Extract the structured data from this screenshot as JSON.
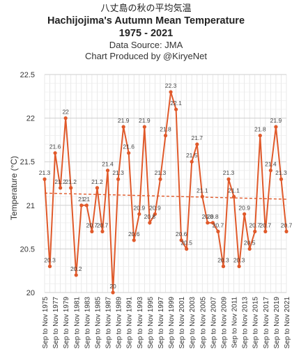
{
  "titles": {
    "japanese": "八丈島の秋の平均気温",
    "title": "Hachijojima's Autumn Mean Temperature",
    "years": "1975 - 2021",
    "source": "Data Source: JMA",
    "credit": "Chart Produced by @KiryeNet"
  },
  "chart_data": {
    "type": "line",
    "title": "Hachijojima's Autumn Mean Temperature",
    "ylabel": "Temperature (°C)",
    "xlabel": "",
    "ylim": [
      20,
      22.5
    ],
    "yticks": [
      "20",
      "20.5",
      "21",
      "21.5",
      "22",
      "22.5"
    ],
    "grid": true,
    "line_color": "#e0592a",
    "trend_color": "#e0592a",
    "categories": [
      "Sep to Nov 1975",
      "Sep to Nov 1976",
      "Sep to Nov 1977",
      "Sep to Nov 1978",
      "Sep to Nov 1979",
      "Sep to Nov 1980",
      "Sep to Nov 1981",
      "Sep to Nov 1982",
      "Sep to Nov 1983",
      "Sep to Nov 1984",
      "Sep to Nov 1985",
      "Sep to Nov 1986",
      "Sep to Nov 1987",
      "Sep to Nov 1988",
      "Sep to Nov 1989",
      "Sep to Nov 1990",
      "Sep to Nov 1991",
      "Sep to Nov 1992",
      "Sep to Nov 1993",
      "Sep to Nov 1994",
      "Sep to Nov 1995",
      "Sep to Nov 1996",
      "Sep to Nov 1997",
      "Sep to Nov 1998",
      "Sep to Nov 1999",
      "Sep to Nov 2000",
      "Sep to Nov 2001",
      "Sep to Nov 2002",
      "Sep to Nov 2003",
      "Sep to Nov 2004",
      "Sep to Nov 2005",
      "Sep to Nov 2006",
      "Sep to Nov 2007",
      "Sep to Nov 2008",
      "Sep to Nov 2009",
      "Sep to Nov 2010",
      "Sep to Nov 2011",
      "Sep to Nov 2012",
      "Sep to Nov 2013",
      "Sep to Nov 2014",
      "Sep to Nov 2015",
      "Sep to Nov 2016",
      "Sep to Nov 2017",
      "Sep to Nov 2018",
      "Sep to Nov 2019",
      "Sep to Nov 2020",
      "Sep to Nov 2021"
    ],
    "tick_labels": [
      "Sep to Nov 1975",
      "Sep to Nov 1977",
      "Sep to Nov 1979",
      "Sep to Nov 1981",
      "Sep to Nov 1983",
      "Sep to Nov 1985",
      "Sep to Nov 1987",
      "Sep to Nov 1989",
      "Sep to Nov 1991",
      "Sep to Nov 1993",
      "Sep to Nov 1995",
      "Sep to Nov 1997",
      "Sep to Nov 1999",
      "Sep to Nov 2001",
      "Sep to Nov 2003",
      "Sep to Nov 2005",
      "Sep to Nov 2007",
      "Sep to Nov 2009",
      "Sep to Nov 2011",
      "Sep to Nov 2013",
      "Sep to Nov 2015",
      "Sep to Nov 2017",
      "Sep to Nov 2019",
      "Sep to Nov 2021"
    ],
    "values": [
      21.3,
      20.3,
      21.6,
      21.2,
      22.0,
      21.2,
      20.2,
      21.0,
      21.0,
      20.7,
      21.2,
      20.7,
      21.4,
      20.0,
      21.3,
      21.9,
      21.6,
      20.6,
      20.9,
      21.9,
      20.8,
      20.9,
      21.3,
      21.8,
      22.3,
      22.1,
      20.6,
      20.5,
      21.5,
      21.7,
      21.1,
      20.8,
      20.8,
      20.7,
      20.3,
      21.3,
      21.1,
      20.3,
      20.9,
      20.5,
      20.7,
      21.8,
      20.7,
      21.4,
      21.9,
      21.3,
      20.7
    ],
    "data_labels": [
      "21.3",
      "20.3",
      "21.6",
      "21.2",
      "22",
      "21.2",
      "20.2",
      "21",
      "21",
      "20.7",
      "21.2",
      "20.7",
      "21.4",
      "20",
      "21.3",
      "21.9",
      "21.6",
      "20.6",
      "20.9",
      "21.9",
      "20.8",
      "20.9",
      "21.3",
      "21.8",
      "22.3",
      "22.1",
      "20.6",
      "20.5",
      "21.5",
      "21.7",
      "21.1",
      "20.8",
      "20.8",
      "20.7",
      "20.3",
      "21.3",
      "21.1",
      "20.3",
      "20.9",
      "20.5",
      "20.7",
      "21.8",
      "20.7",
      "21.4",
      "21.9",
      "21.3",
      "20.7"
    ],
    "trend": {
      "start": 21.14,
      "end": 21.07
    }
  }
}
